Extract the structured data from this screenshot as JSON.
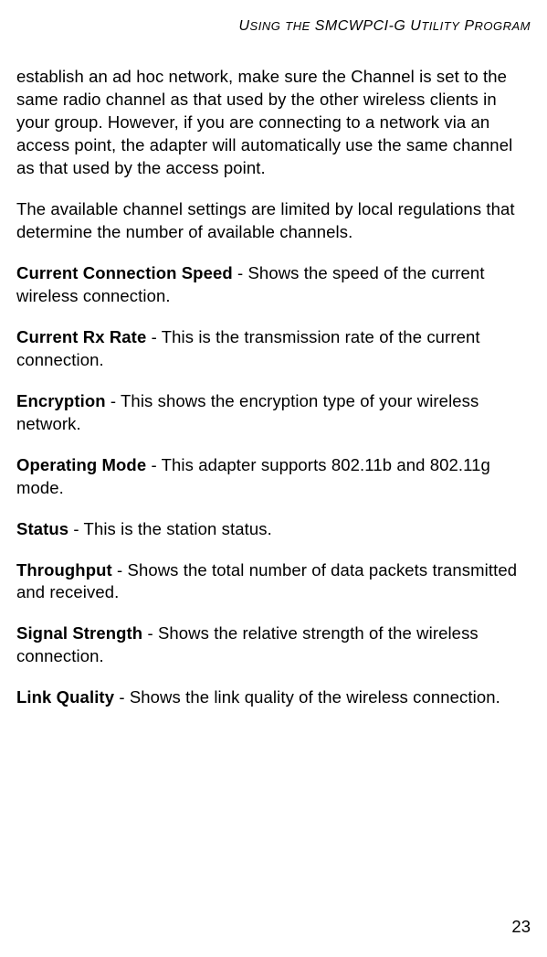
{
  "header": {
    "text": "Uꜱɪɴɢ ᴛʜᴇ SMCWPCI-G Uᴛɪʟɪᴛʏ Pʀᴏɢʀᴀᴍ",
    "plain": "USING THE SMCWPCI-G UTILITY PROGRAM"
  },
  "paragraphs": {
    "p1": "establish an ad hoc network, make sure the Channel is set to the same radio channel as that used by the other wireless clients in your group. However, if you are connecting to a network via an access point, the adapter will automatically use the same channel as that used by the access point.",
    "p2": "The available channel settings are limited by local regulations that determine the number of available channels.",
    "p3_label": "Current Connection Speed",
    "p3_rest": " - Shows the speed of the current wireless connection.",
    "p4_label": "Current Rx Rate",
    "p4_rest": " - This is the transmission rate of the current connection.",
    "p5_label": "Encryption",
    "p5_rest": " - This shows the encryption type of your wireless network.",
    "p6_label": "Operating Mode",
    "p6_rest": " - This adapter supports 802.11b and 802.11g mode.",
    "p7_label": "Status",
    "p7_rest": " - This is the station status.",
    "p8_label": "Throughput",
    "p8_rest": " - Shows the total number of data packets transmitted and received.",
    "p9_label": "Signal Strength",
    "p9_rest": " - Shows the relative strength of the wireless connection.",
    "p10_label": "Link Quality",
    "p10_rest": " - Shows the link quality of the wireless connection."
  },
  "page_number": "23"
}
